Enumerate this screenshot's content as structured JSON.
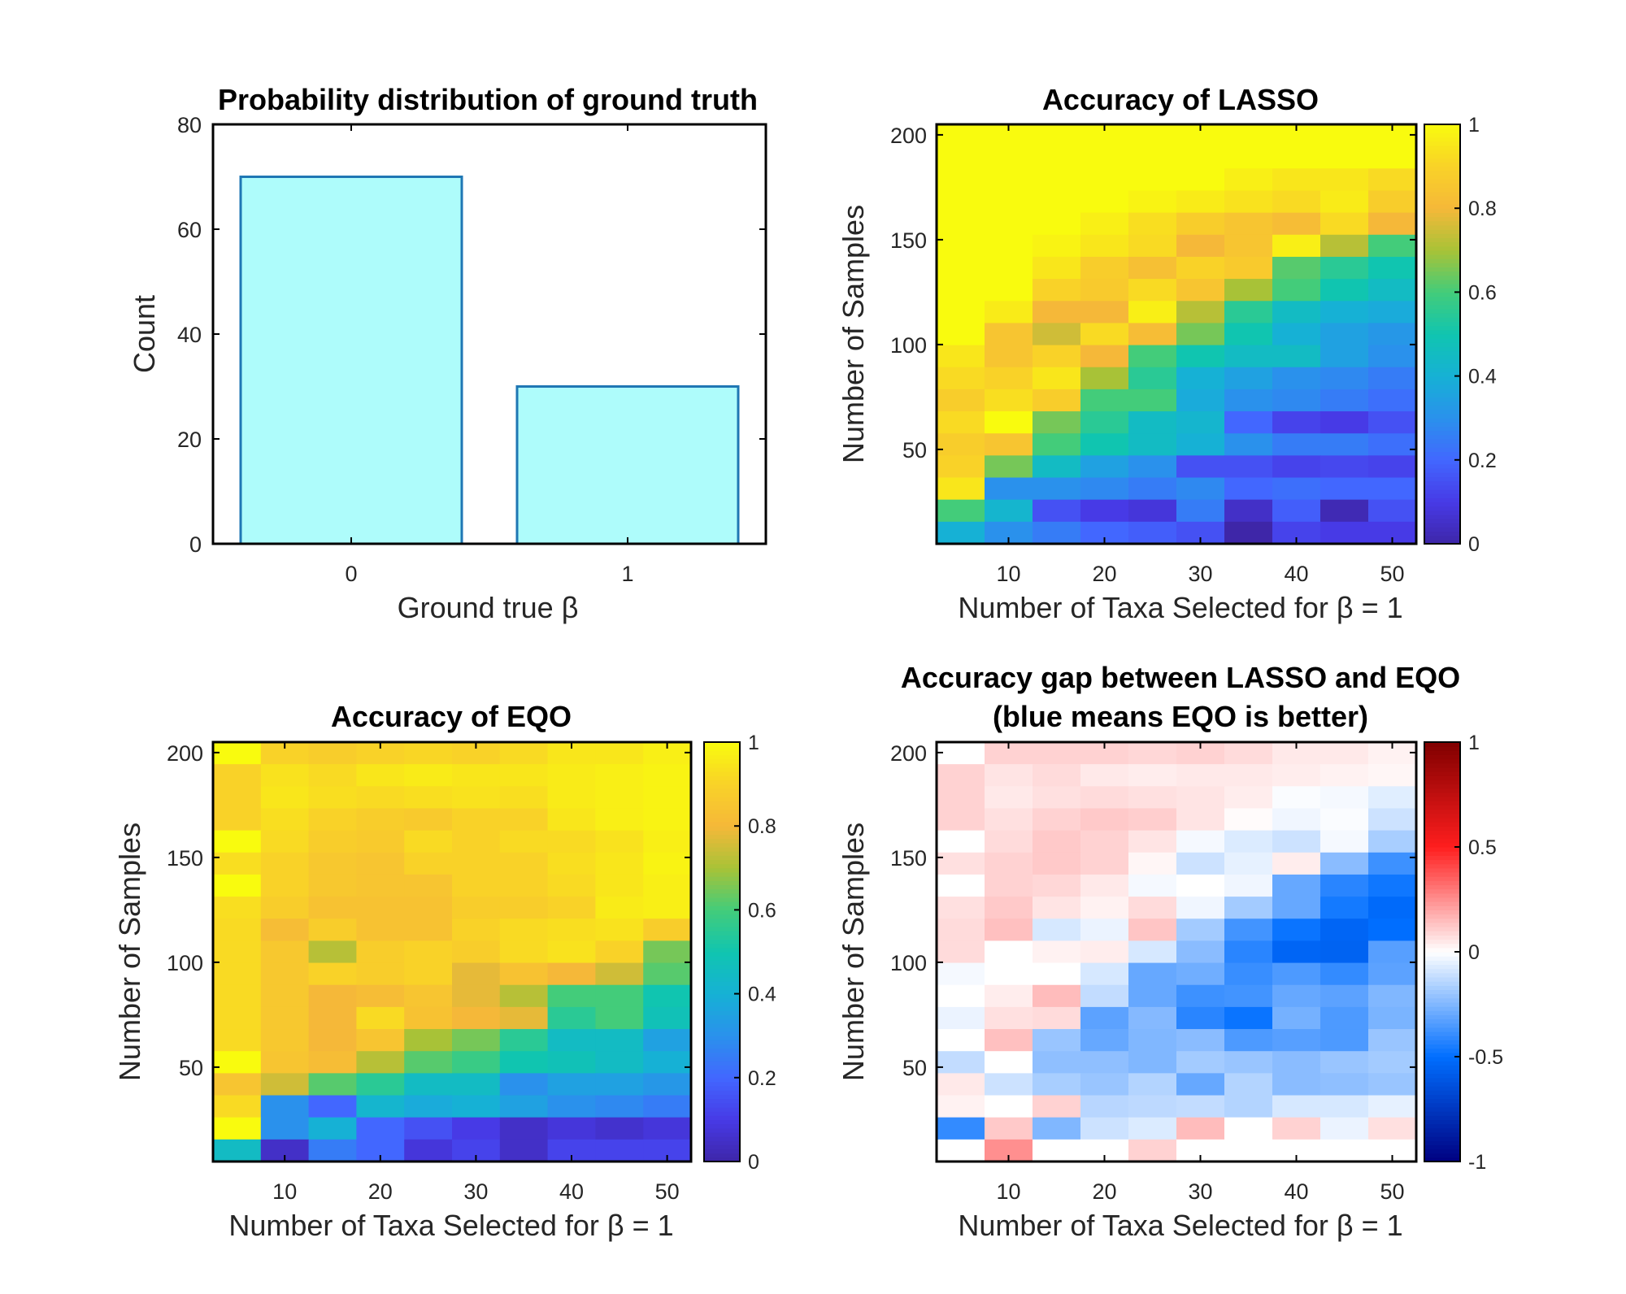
{
  "chart_data": [
    {
      "type": "bar",
      "title": "Probability distribution of ground truth",
      "xlabel": "Ground true β",
      "ylabel": "Count",
      "categories": [
        "0",
        "1"
      ],
      "values": [
        70,
        30
      ],
      "ylim": [
        0,
        80
      ],
      "yticks": [
        "0",
        "20",
        "40",
        "60",
        "80"
      ],
      "bar_color": "#aefcfb",
      "edge_color": "#1f77b4",
      "grid": false
    },
    {
      "type": "heatmap",
      "title": "Accuracy of LASSO",
      "xlabel": "Number of Taxa Selected for β = 1",
      "ylabel": "Number of Samples",
      "xlim": [
        2.5,
        52.5
      ],
      "ylim": [
        5,
        205
      ],
      "xticks": [
        "10",
        "20",
        "30",
        "40",
        "50"
      ],
      "yticks": [
        "50",
        "100",
        "150",
        "200"
      ],
      "colormap": "parula",
      "clim": [
        0,
        1
      ],
      "colorbar_ticks": [
        "0",
        "0.2",
        "0.4",
        "0.6",
        "0.8",
        "1"
      ],
      "note": "rows from top (Samples≈200) to bottom (Samples≈10); columns Taxa 5,10,...,50",
      "values": [
        [
          1,
          1,
          1,
          1,
          1,
          1,
          1,
          1,
          1,
          1
        ],
        [
          1,
          1,
          1,
          1,
          1,
          1,
          1,
          1,
          1,
          1
        ],
        [
          1,
          1,
          1,
          1,
          1,
          1,
          0.97,
          0.95,
          0.95,
          0.92
        ],
        [
          1,
          1,
          1,
          1,
          0.98,
          0.96,
          0.94,
          0.92,
          0.96,
          0.88
        ],
        [
          1,
          1,
          1,
          0.97,
          0.93,
          0.88,
          0.85,
          0.82,
          0.92,
          0.8
        ],
        [
          1,
          1,
          0.98,
          0.95,
          0.92,
          0.8,
          0.85,
          0.97,
          0.72,
          0.6
        ],
        [
          1,
          1,
          0.95,
          0.88,
          0.83,
          0.9,
          0.87,
          0.62,
          0.55,
          0.5
        ],
        [
          1,
          1,
          0.9,
          0.87,
          0.92,
          0.85,
          0.7,
          0.6,
          0.5,
          0.45
        ],
        [
          1,
          0.96,
          0.8,
          0.8,
          0.97,
          0.72,
          0.55,
          0.45,
          0.4,
          0.38
        ],
        [
          1,
          0.85,
          0.75,
          0.92,
          0.82,
          0.65,
          0.5,
          0.4,
          0.35,
          0.32
        ],
        [
          0.95,
          0.85,
          0.9,
          0.8,
          0.6,
          0.5,
          0.45,
          0.45,
          0.35,
          0.3
        ],
        [
          0.92,
          0.9,
          0.95,
          0.7,
          0.55,
          0.4,
          0.35,
          0.3,
          0.28,
          0.25
        ],
        [
          0.88,
          0.93,
          0.88,
          0.6,
          0.6,
          0.38,
          0.3,
          0.28,
          0.25,
          0.22
        ],
        [
          0.92,
          1,
          0.65,
          0.55,
          0.45,
          0.42,
          0.2,
          0.12,
          0.1,
          0.15
        ],
        [
          0.88,
          0.85,
          0.6,
          0.5,
          0.45,
          0.4,
          0.3,
          0.25,
          0.25,
          0.22
        ],
        [
          0.9,
          0.65,
          0.45,
          0.35,
          0.3,
          0.15,
          0.15,
          0.12,
          0.13,
          0.12
        ],
        [
          0.95,
          0.3,
          0.3,
          0.28,
          0.25,
          0.28,
          0.2,
          0.22,
          0.2,
          0.2
        ],
        [
          0.6,
          0.42,
          0.15,
          0.1,
          0.08,
          0.25,
          0.05,
          0.18,
          0.02,
          0.15
        ],
        [
          0.4,
          0.3,
          0.25,
          0.2,
          0.18,
          0.15,
          0.0,
          0.12,
          0.1,
          0.1
        ]
      ]
    },
    {
      "type": "heatmap",
      "title": "Accuracy of EQO",
      "xlabel": "Number of Taxa Selected for β = 1",
      "ylabel": "Number of Samples",
      "xlim": [
        2.5,
        52.5
      ],
      "ylim": [
        5,
        205
      ],
      "xticks": [
        "10",
        "20",
        "30",
        "40",
        "50"
      ],
      "yticks": [
        "50",
        "100",
        "150",
        "200"
      ],
      "colormap": "parula",
      "clim": [
        0,
        1
      ],
      "colorbar_ticks": [
        "0",
        "0.2",
        "0.4",
        "0.6",
        "0.8",
        "1"
      ],
      "note": "rows from top (Samples≈200) to bottom (Samples≈10); columns Taxa 5,10,...,50",
      "values": [
        [
          1,
          0.9,
          0.88,
          0.9,
          0.91,
          0.9,
          0.92,
          0.95,
          0.95,
          0.97
        ],
        [
          0.9,
          0.94,
          0.92,
          0.95,
          0.96,
          0.95,
          0.95,
          0.96,
          0.97,
          0.98
        ],
        [
          0.9,
          0.95,
          0.93,
          0.92,
          0.93,
          0.94,
          0.93,
          0.96,
          0.97,
          0.98
        ],
        [
          0.9,
          0.93,
          0.9,
          0.88,
          0.87,
          0.9,
          0.9,
          0.95,
          0.97,
          0.98
        ],
        [
          1,
          0.92,
          0.88,
          0.87,
          0.92,
          0.9,
          0.92,
          0.92,
          0.94,
          0.97
        ],
        [
          0.93,
          0.9,
          0.86,
          0.85,
          0.9,
          0.9,
          0.9,
          0.93,
          0.95,
          0.98
        ],
        [
          1,
          0.9,
          0.86,
          0.85,
          0.85,
          0.9,
          0.9,
          0.92,
          0.95,
          0.97
        ],
        [
          0.93,
          0.88,
          0.84,
          0.84,
          0.84,
          0.88,
          0.88,
          0.9,
          0.96,
          0.97
        ],
        [
          0.92,
          0.82,
          0.88,
          0.84,
          0.84,
          0.9,
          0.92,
          0.93,
          0.94,
          0.88
        ],
        [
          0.92,
          0.86,
          0.72,
          0.88,
          0.9,
          0.88,
          0.92,
          0.94,
          0.9,
          0.65
        ],
        [
          0.92,
          0.86,
          0.9,
          0.88,
          0.9,
          0.78,
          0.84,
          0.8,
          0.75,
          0.62
        ],
        [
          0.92,
          0.86,
          0.8,
          0.82,
          0.85,
          0.78,
          0.72,
          0.6,
          0.6,
          0.5
        ],
        [
          0.92,
          0.86,
          0.8,
          0.92,
          0.84,
          0.8,
          0.78,
          0.55,
          0.6,
          0.48
        ],
        [
          0.92,
          0.86,
          0.8,
          0.85,
          0.7,
          0.65,
          0.55,
          0.45,
          0.45,
          0.35
        ],
        [
          1,
          0.85,
          0.82,
          0.72,
          0.62,
          0.58,
          0.5,
          0.48,
          0.45,
          0.4
        ],
        [
          0.85,
          0.75,
          0.62,
          0.55,
          0.45,
          0.45,
          0.3,
          0.35,
          0.35,
          0.32
        ],
        [
          0.92,
          0.3,
          0.2,
          0.42,
          0.38,
          0.4,
          0.35,
          0.3,
          0.28,
          0.25
        ],
        [
          1,
          0.3,
          0.4,
          0.2,
          0.15,
          0.1,
          0.05,
          0.08,
          0.06,
          0.08
        ],
        [
          0.45,
          0.05,
          0.25,
          0.2,
          0.08,
          0.12,
          0.05,
          0.12,
          0.12,
          0.12
        ]
      ]
    },
    {
      "type": "heatmap",
      "title": "Accuracy gap between LASSO and EQO",
      "subtitle": "(blue means EQO is better)",
      "xlabel": "Number of Taxa Selected for β = 1",
      "ylabel": "Number of Samples",
      "xlim": [
        2.5,
        52.5
      ],
      "ylim": [
        5,
        205
      ],
      "xticks": [
        "10",
        "20",
        "30",
        "40",
        "50"
      ],
      "yticks": [
        "50",
        "100",
        "150",
        "200"
      ],
      "colormap": "blue-white-red",
      "clim": [
        -1,
        1
      ],
      "colorbar_ticks": [
        "-1",
        "-0.5",
        "0",
        "0.5",
        "1"
      ],
      "note": "rows from top (Samples≈200) to bottom (Samples≈10); columns Taxa 5,10,...,50",
      "values": [
        [
          0,
          0.1,
          0.1,
          0.1,
          0.09,
          0.1,
          0.08,
          0.05,
          0.05,
          0.03
        ],
        [
          0.1,
          0.06,
          0.08,
          0.05,
          0.04,
          0.05,
          0.05,
          0.04,
          0.03,
          0.02
        ],
        [
          0.1,
          0.05,
          0.07,
          0.08,
          0.07,
          0.06,
          0.04,
          -0.01,
          -0.02,
          -0.06
        ],
        [
          0.1,
          0.07,
          0.1,
          0.12,
          0.11,
          0.06,
          0.01,
          -0.03,
          -0.01,
          -0.1
        ],
        [
          0,
          0.08,
          0.12,
          0.1,
          0.06,
          -0.02,
          -0.07,
          -0.1,
          -0.02,
          -0.17
        ],
        [
          0.07,
          0.1,
          0.12,
          0.1,
          0.02,
          -0.1,
          -0.05,
          0.04,
          -0.23,
          -0.38
        ],
        [
          0,
          0.1,
          0.09,
          0.05,
          -0.02,
          0,
          -0.03,
          -0.3,
          -0.42,
          -0.47
        ],
        [
          0.07,
          0.12,
          0.06,
          0.03,
          0.08,
          -0.03,
          -0.18,
          -0.3,
          -0.46,
          -0.52
        ],
        [
          0.08,
          0.14,
          -0.08,
          -0.04,
          0.13,
          -0.18,
          -0.37,
          -0.48,
          -0.54,
          -0.5
        ],
        [
          0.08,
          0,
          0.03,
          0.04,
          -0.08,
          -0.23,
          -0.42,
          -0.54,
          -0.55,
          -0.33
        ],
        [
          -0.02,
          0,
          0,
          -0.08,
          -0.3,
          -0.28,
          -0.39,
          -0.35,
          -0.4,
          -0.32
        ],
        [
          0,
          0.04,
          0.15,
          -0.12,
          -0.3,
          -0.38,
          -0.37,
          -0.3,
          -0.32,
          -0.25
        ],
        [
          -0.04,
          0.07,
          0.08,
          -0.32,
          -0.24,
          -0.42,
          -0.48,
          -0.27,
          -0.35,
          -0.26
        ],
        [
          0,
          0.14,
          -0.2,
          -0.3,
          -0.25,
          -0.23,
          -0.35,
          -0.33,
          -0.35,
          -0.2
        ],
        [
          -0.12,
          0,
          -0.22,
          -0.22,
          -0.25,
          -0.18,
          -0.2,
          -0.23,
          -0.2,
          -0.18
        ],
        [
          0.05,
          -0.1,
          -0.17,
          -0.2,
          -0.15,
          -0.3,
          -0.15,
          -0.23,
          -0.22,
          -0.2
        ],
        [
          0.03,
          0,
          0.1,
          -0.14,
          -0.13,
          -0.12,
          -0.15,
          -0.08,
          -0.08,
          -0.05
        ],
        [
          -0.4,
          0.12,
          -0.25,
          -0.1,
          -0.07,
          0.15,
          0,
          0.1,
          -0.04,
          0.07
        ],
        [
          0,
          0.25,
          0,
          0,
          0.1,
          0,
          0,
          0,
          0,
          0
        ]
      ]
    }
  ]
}
